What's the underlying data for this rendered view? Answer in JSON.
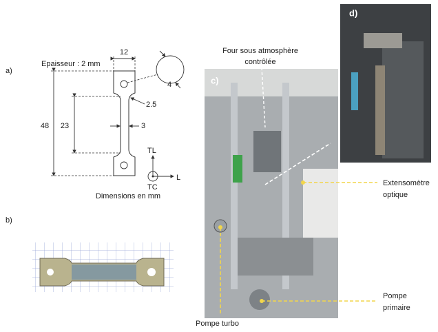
{
  "panels": {
    "a": {
      "label": "a)",
      "thickness": "Epaisseur : 2 mm",
      "dimensions": {
        "width": "12",
        "hole": "4",
        "radius": "2.5",
        "length": "48",
        "gauge_length": "23",
        "gauge_width": "3"
      },
      "axes": {
        "tl": "TL",
        "tc": "TC",
        "l": "L"
      },
      "caption": "Dimensions en mm"
    },
    "b": {
      "label": "b)"
    },
    "c": {
      "label": "c)",
      "furnace": [
        "Four sous atmosphère",
        "contrôlée"
      ],
      "extensometer": [
        "Extensomètre",
        "optique"
      ],
      "primary_pump": [
        "Pompe",
        "primaire"
      ],
      "turbo_pump": "Pompe turbo"
    },
    "d": {
      "label": "d)"
    }
  }
}
